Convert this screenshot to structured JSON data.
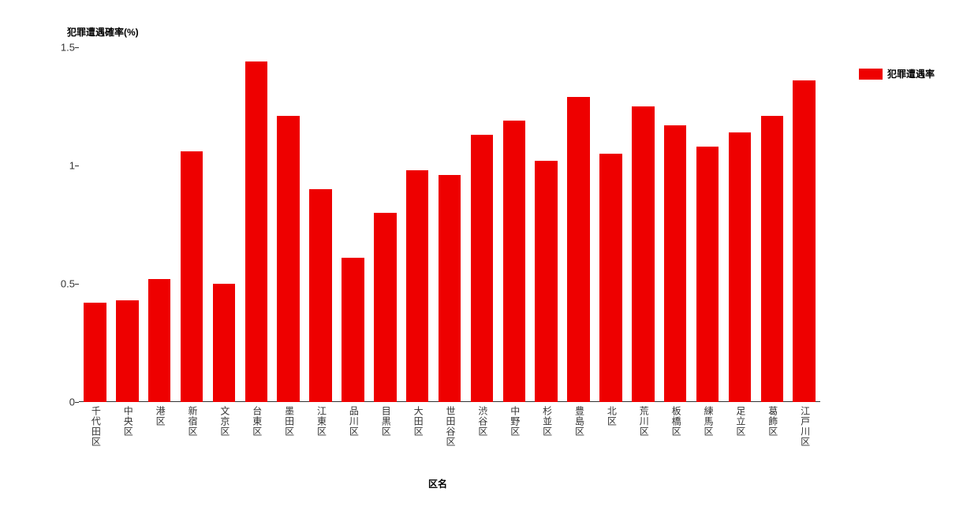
{
  "chart": {
    "type": "bar",
    "y_axis_title": "犯罪遭遇確率(%)",
    "x_axis_title": "区名",
    "title_fontsize": 12,
    "title_fontweight": "bold",
    "label_fontsize": 12,
    "tick_fontsize": 13,
    "bar_color": "#ee0000",
    "background_color": "#ffffff",
    "axis_color": "#333333",
    "text_color": "#333333",
    "ylim": [
      0,
      1.5
    ],
    "yticks": [
      0,
      0.5,
      1,
      1.5
    ],
    "bar_width_ratio": 0.7,
    "categories": [
      "千代田区",
      "中央区",
      "港区",
      "新宿区",
      "文京区",
      "台東区",
      "墨田区",
      "江東区",
      "品川区",
      "目黒区",
      "大田区",
      "世田谷区",
      "渋谷区",
      "中野区",
      "杉並区",
      "豊島区",
      "北区",
      "荒川区",
      "板橋区",
      "練馬区",
      "足立区",
      "葛飾区",
      "江戸川区"
    ],
    "values": [
      0.42,
      0.43,
      0.52,
      1.06,
      0.5,
      1.44,
      1.21,
      0.9,
      0.61,
      0.8,
      0.98,
      0.96,
      1.13,
      1.19,
      1.02,
      1.29,
      1.05,
      1.25,
      1.17,
      1.08,
      1.14,
      1.21,
      1.36
    ],
    "legend": {
      "label": "犯罪遭遇率",
      "color": "#ee0000",
      "position": "top-right"
    }
  }
}
